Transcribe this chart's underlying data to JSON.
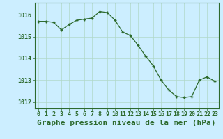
{
  "x": [
    0,
    1,
    2,
    3,
    4,
    5,
    6,
    7,
    8,
    9,
    10,
    11,
    12,
    13,
    14,
    15,
    16,
    17,
    18,
    19,
    20,
    21,
    22,
    23
  ],
  "y": [
    1015.7,
    1015.7,
    1015.65,
    1015.3,
    1015.55,
    1015.75,
    1015.8,
    1015.85,
    1016.15,
    1016.1,
    1015.75,
    1015.2,
    1015.05,
    1014.6,
    1014.1,
    1013.65,
    1013.0,
    1012.55,
    1012.25,
    1012.2,
    1012.25,
    1013.0,
    1013.15,
    1012.95
  ],
  "line_color": "#2d6a2d",
  "marker": "+",
  "bg_color": "#cceeff",
  "grid_color": "#b0d8c8",
  "xlabel": "Graphe pression niveau de la mer (hPa)",
  "ylim": [
    1011.7,
    1016.55
  ],
  "yticks": [
    1012,
    1013,
    1014,
    1015,
    1016
  ],
  "xticks": [
    0,
    1,
    2,
    3,
    4,
    5,
    6,
    7,
    8,
    9,
    10,
    11,
    12,
    13,
    14,
    15,
    16,
    17,
    18,
    19,
    20,
    21,
    22,
    23
  ],
  "tick_color": "#2d6a2d",
  "tick_fontsize": 6.0,
  "xlabel_fontsize": 8.0
}
